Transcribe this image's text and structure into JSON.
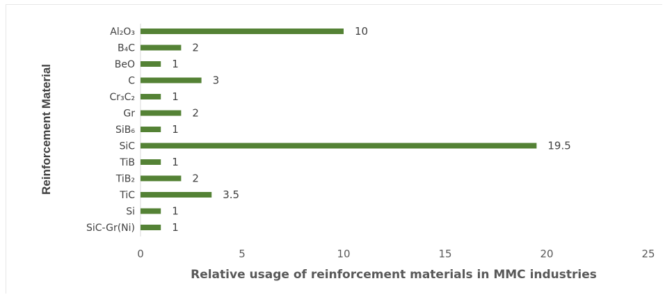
{
  "chart_data": {
    "type": "bar",
    "orientation": "horizontal",
    "categories": [
      "Al₂O₃",
      "B₄C",
      "BeO",
      "C",
      "Cr₃C₂",
      "Gr",
      "SiB₆",
      "SiC",
      "TiB",
      "TiB₂",
      "TiC",
      "Si",
      "SiC-Gr(Ni)"
    ],
    "values": [
      10,
      2,
      1,
      3,
      1,
      2,
      1,
      19.5,
      1,
      2,
      3.5,
      1,
      1
    ],
    "value_labels": [
      "10",
      "2",
      "1",
      "3",
      "1",
      "2",
      "1",
      "19.5",
      "1",
      "2",
      "3.5",
      "1",
      "1"
    ],
    "xlabel": "Relative usage of reinforcement materials in MMC industries",
    "ylabel": "Reinforcement Material",
    "xlim": [
      0,
      25
    ],
    "xticks": [
      "0",
      "5",
      "10",
      "15",
      "20",
      "25"
    ],
    "bar_color": "#548235",
    "grid": false
  }
}
